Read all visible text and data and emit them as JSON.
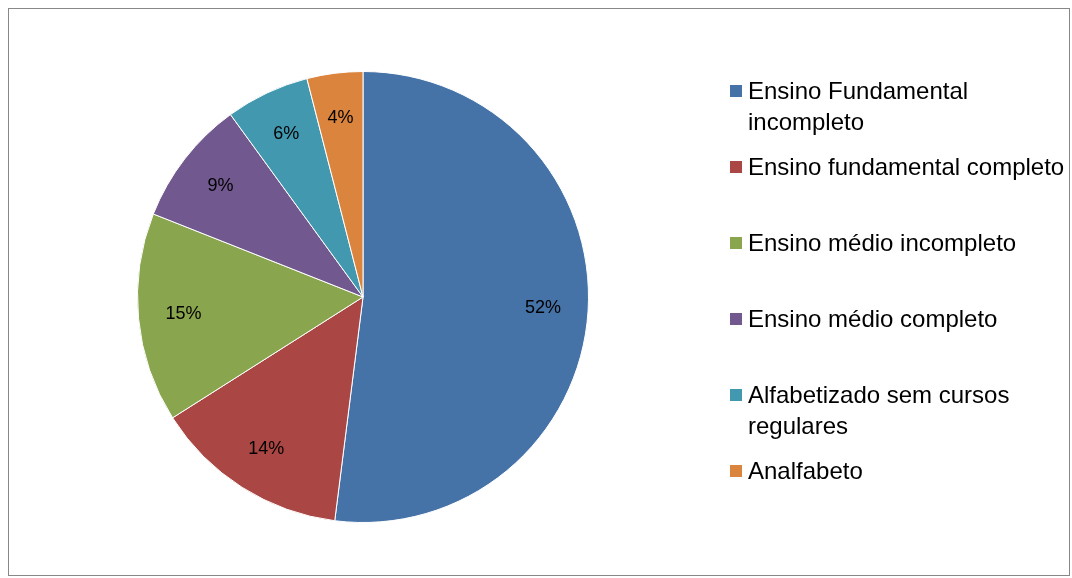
{
  "chart_data": {
    "type": "pie",
    "categories": [
      "Ensino Fundamental incompleto",
      "Ensino fundamental completo",
      "Ensino médio incompleto",
      "Ensino médio completo",
      "Alfabetizado sem cursos regulares",
      "Analfabeto"
    ],
    "values": [
      52,
      14,
      15,
      9,
      6,
      4
    ],
    "colors": [
      "#4572a7",
      "#aa4643",
      "#89a54e",
      "#71588f",
      "#4198af",
      "#db843d"
    ],
    "value_labels": [
      "52%",
      "14%",
      "15%",
      "9%",
      "6%",
      "4%"
    ],
    "legend": "right"
  }
}
